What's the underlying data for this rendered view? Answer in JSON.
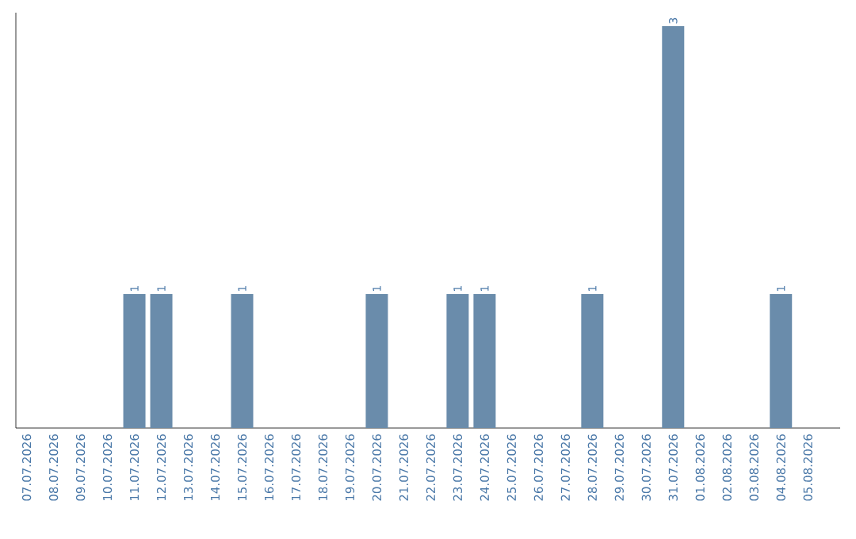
{
  "chart_data": {
    "type": "bar",
    "categories": [
      "07.07.2026",
      "08.07.2026",
      "09.07.2026",
      "10.07.2026",
      "11.07.2026",
      "12.07.2026",
      "13.07.2026",
      "14.07.2026",
      "15.07.2026",
      "16.07.2026",
      "17.07.2026",
      "18.07.2026",
      "19.07.2026",
      "20.07.2026",
      "21.07.2026",
      "22.07.2026",
      "23.07.2026",
      "24.07.2026",
      "25.07.2026",
      "26.07.2026",
      "27.07.2026",
      "28.07.2026",
      "29.07.2026",
      "30.07.2026",
      "31.07.2026",
      "01.08.2026",
      "02.08.2026",
      "03.08.2026",
      "04.08.2026",
      "05.08.2026"
    ],
    "values": [
      0,
      0,
      0,
      0,
      1,
      1,
      0,
      0,
      1,
      0,
      0,
      0,
      0,
      1,
      0,
      0,
      1,
      1,
      0,
      0,
      0,
      1,
      0,
      0,
      3,
      0,
      0,
      0,
      1,
      0
    ],
    "value_labels": [
      null,
      null,
      null,
      null,
      "1",
      "1",
      null,
      null,
      "1",
      null,
      null,
      null,
      null,
      "1",
      null,
      null,
      "1",
      "1",
      null,
      null,
      null,
      "1",
      null,
      null,
      "3",
      null,
      null,
      null,
      "1",
      null
    ],
    "color": "#6a8cab",
    "ylim": [
      0,
      3.1
    ],
    "tick_labels": "x"
  }
}
